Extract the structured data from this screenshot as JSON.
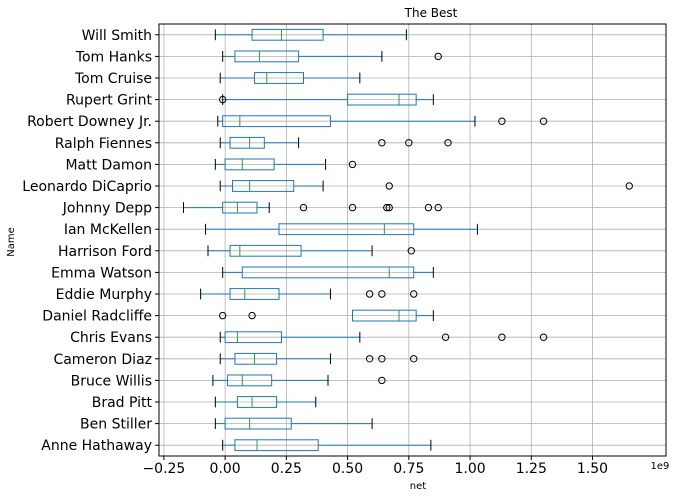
{
  "chart_data": {
    "type": "boxplot",
    "orientation": "horizontal",
    "title": "The Best",
    "xlabel": "net",
    "ylabel": "Name",
    "x_offset_label": "1e9",
    "xlim": [
      -0.27,
      1.8
    ],
    "x_ticks": [
      -0.25,
      0.0,
      0.25,
      0.5,
      0.75,
      1.0,
      1.25,
      1.5
    ],
    "x_tick_labels": [
      "−0.25",
      "0.00",
      "0.25",
      "0.50",
      "0.75",
      "1.00",
      "1.25",
      "1.50"
    ],
    "grid": true,
    "colors": {
      "box": "#1f77b4",
      "median": "#2ca02c",
      "whisker": "#1f77b4",
      "cap": "#000000",
      "grid": "#b0b0b0"
    },
    "categories": [
      "Will Smith",
      "Tom Hanks",
      "Tom Cruise",
      "Rupert Grint",
      "Robert Downey Jr.",
      "Ralph Fiennes",
      "Matt Damon",
      "Leonardo DiCaprio",
      "Johnny Depp",
      "Ian McKellen",
      "Harrison Ford",
      "Emma Watson",
      "Eddie Murphy",
      "Daniel Radcliffe",
      "Chris Evans",
      "Cameron Diaz",
      "Bruce Willis",
      "Brad Pitt",
      "Ben Stiller",
      "Anne Hathaway"
    ],
    "boxes": [
      {
        "name": "Will Smith",
        "whislo": -0.04,
        "q1": 0.11,
        "med": 0.23,
        "q3": 0.4,
        "whishi": 0.74,
        "fliers": []
      },
      {
        "name": "Tom Hanks",
        "whislo": -0.01,
        "q1": 0.04,
        "med": 0.14,
        "q3": 0.3,
        "whishi": 0.64,
        "fliers": [
          0.87
        ]
      },
      {
        "name": "Tom Cruise",
        "whislo": -0.02,
        "q1": 0.12,
        "med": 0.17,
        "q3": 0.32,
        "whishi": 0.55,
        "fliers": []
      },
      {
        "name": "Rupert Grint",
        "whislo": -0.01,
        "q1": 0.5,
        "med": 0.71,
        "q3": 0.78,
        "whishi": 0.85,
        "fliers": [
          -0.01
        ]
      },
      {
        "name": "Robert Downey Jr.",
        "whislo": -0.03,
        "q1": -0.01,
        "med": 0.06,
        "q3": 0.43,
        "whishi": 1.02,
        "fliers": [
          1.13,
          1.3
        ]
      },
      {
        "name": "Ralph Fiennes",
        "whislo": -0.02,
        "q1": 0.02,
        "med": 0.1,
        "q3": 0.16,
        "whishi": 0.3,
        "fliers": [
          0.64,
          0.75,
          0.91
        ]
      },
      {
        "name": "Matt Damon",
        "whislo": -0.04,
        "q1": 0.0,
        "med": 0.07,
        "q3": 0.2,
        "whishi": 0.41,
        "fliers": [
          0.52
        ]
      },
      {
        "name": "Leonardo DiCaprio",
        "whislo": -0.02,
        "q1": 0.03,
        "med": 0.1,
        "q3": 0.28,
        "whishi": 0.4,
        "fliers": [
          0.67,
          1.65
        ]
      },
      {
        "name": "Johnny Depp",
        "whislo": -0.17,
        "q1": -0.01,
        "med": 0.05,
        "q3": 0.13,
        "whishi": 0.18,
        "fliers": [
          0.32,
          0.52,
          0.66,
          0.67,
          0.83,
          0.87
        ]
      },
      {
        "name": "Ian McKellen",
        "whislo": -0.08,
        "q1": 0.22,
        "med": 0.65,
        "q3": 0.77,
        "whishi": 1.03,
        "fliers": []
      },
      {
        "name": "Harrison Ford",
        "whislo": -0.07,
        "q1": 0.02,
        "med": 0.06,
        "q3": 0.31,
        "whishi": 0.6,
        "fliers": [
          0.76
        ]
      },
      {
        "name": "Emma Watson",
        "whislo": -0.01,
        "q1": 0.07,
        "med": 0.67,
        "q3": 0.77,
        "whishi": 0.85,
        "fliers": []
      },
      {
        "name": "Eddie Murphy",
        "whislo": -0.1,
        "q1": 0.02,
        "med": 0.08,
        "q3": 0.22,
        "whishi": 0.43,
        "fliers": [
          0.59,
          0.64,
          0.77
        ]
      },
      {
        "name": "Daniel Radcliffe",
        "whislo": 0.52,
        "q1": 0.52,
        "med": 0.71,
        "q3": 0.78,
        "whishi": 0.85,
        "fliers": [
          -0.01,
          0.11
        ]
      },
      {
        "name": "Chris Evans",
        "whislo": -0.02,
        "q1": 0.0,
        "med": 0.05,
        "q3": 0.23,
        "whishi": 0.55,
        "fliers": [
          0.9,
          1.13,
          1.3
        ]
      },
      {
        "name": "Cameron Diaz",
        "whislo": -0.02,
        "q1": 0.04,
        "med": 0.12,
        "q3": 0.21,
        "whishi": 0.43,
        "fliers": [
          0.59,
          0.64,
          0.77
        ]
      },
      {
        "name": "Bruce Willis",
        "whislo": -0.05,
        "q1": 0.01,
        "med": 0.07,
        "q3": 0.19,
        "whishi": 0.42,
        "fliers": [
          0.64
        ]
      },
      {
        "name": "Brad Pitt",
        "whislo": -0.04,
        "q1": 0.05,
        "med": 0.11,
        "q3": 0.21,
        "whishi": 0.37,
        "fliers": []
      },
      {
        "name": "Ben Stiller",
        "whislo": -0.04,
        "q1": 0.0,
        "med": 0.1,
        "q3": 0.27,
        "whishi": 0.6,
        "fliers": []
      },
      {
        "name": "Anne Hathaway",
        "whislo": -0.01,
        "q1": 0.04,
        "med": 0.13,
        "q3": 0.38,
        "whishi": 0.84,
        "fliers": []
      }
    ]
  }
}
